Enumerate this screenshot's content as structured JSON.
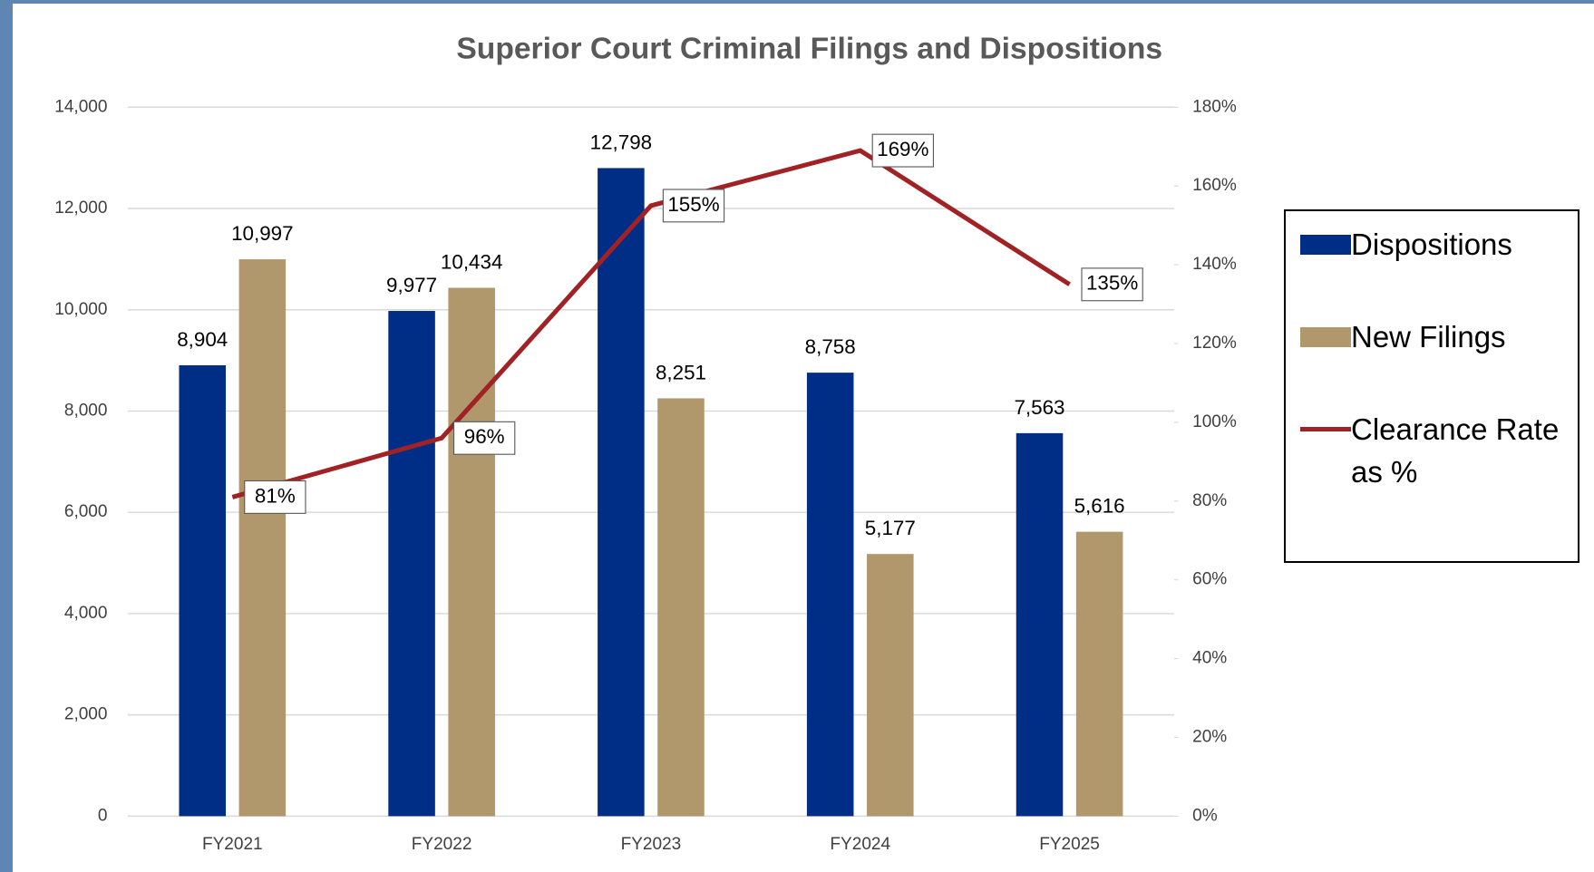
{
  "chart_data": {
    "type": "bar",
    "title": "Superior Court Criminal Filings and Dispositions",
    "categories": [
      "FY2021",
      "FY2022",
      "FY2023",
      "FY2024",
      "FY2025"
    ],
    "series": [
      {
        "name": "Dispositions",
        "color": "#002d86",
        "values": [
          8904,
          9977,
          12798,
          8758,
          7563
        ],
        "value_labels": [
          "8,904",
          "9,977",
          "12,798",
          "8,758",
          "7,563"
        ]
      },
      {
        "name": "New Filings",
        "color": "#b0976c",
        "values": [
          10997,
          10434,
          8251,
          5177,
          5616
        ],
        "value_labels": [
          "10,997",
          "10,434",
          "8,251",
          "5,177",
          "5,616"
        ]
      },
      {
        "name": "Clearance Rate as %",
        "type": "line",
        "axis": "y2",
        "color": "#a02225",
        "values": [
          81,
          96,
          155,
          169,
          135
        ],
        "value_labels": [
          "81%",
          "96%",
          "155%",
          "169%",
          "135%"
        ]
      }
    ],
    "ylim": [
      0,
      14000
    ],
    "yticks": [
      0,
      {
        "value": 2000,
        "label": "2,000"
      },
      {
        "value": 4000,
        "label": "4,000"
      },
      {
        "value": 6000,
        "label": "6,000"
      },
      {
        "value": 8000,
        "label": "8,000"
      },
      {
        "value": 10000,
        "label": "10,000"
      },
      {
        "value": 12000,
        "label": "12,000"
      },
      {
        "value": 14000,
        "label": "14,000"
      }
    ],
    "y2lim": [
      0,
      180
    ],
    "y2ticks": [
      {
        "value": 0,
        "label": "0%"
      },
      {
        "value": 20,
        "label": "20%"
      },
      {
        "value": 40,
        "label": "40%"
      },
      {
        "value": 60,
        "label": "60%"
      },
      {
        "value": 80,
        "label": "80%"
      },
      {
        "value": 100,
        "label": "100%"
      },
      {
        "value": 120,
        "label": "120%"
      },
      {
        "value": 140,
        "label": "140%"
      },
      {
        "value": 160,
        "label": "160%"
      },
      {
        "value": 180,
        "label": "180%"
      }
    ],
    "grid": true,
    "legend": "right"
  }
}
